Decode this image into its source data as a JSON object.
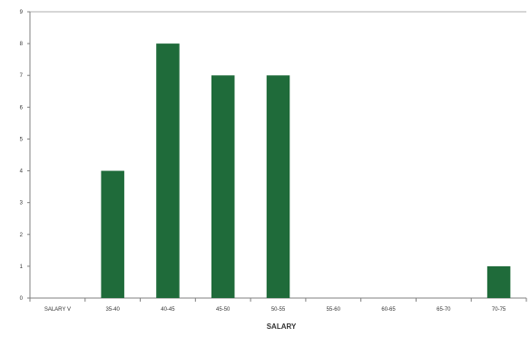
{
  "chart_data": {
    "type": "bar",
    "xlabel": "SALARY",
    "ylabel": "",
    "ylim": [
      0,
      9
    ],
    "yticks": [
      0,
      1,
      2,
      3,
      4,
      5,
      6,
      7,
      8,
      9
    ],
    "grid": false,
    "legend": "none",
    "categories": [
      "SALARY V",
      "35-40",
      "40-45",
      "45-50",
      "50-55",
      "55-60",
      "60-65",
      "65-70",
      "70-75"
    ],
    "values": [
      0,
      4,
      8,
      7,
      7,
      0,
      0,
      0,
      1
    ],
    "bar_color": "#1f6b3a",
    "axis_color": "#7f7f7f"
  }
}
